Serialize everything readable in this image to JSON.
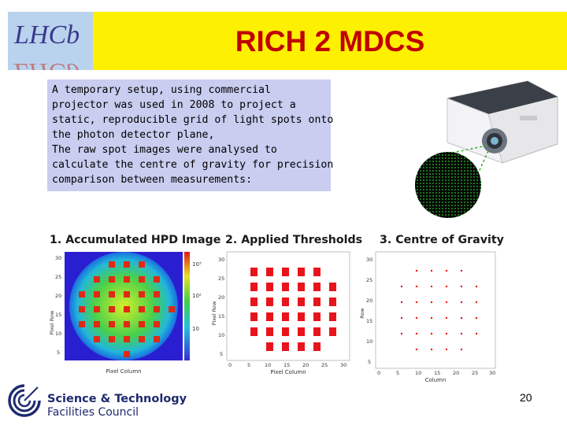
{
  "header": {
    "logo_text": "LHCb",
    "title": "RICH 2 MDCS"
  },
  "intro_text": [
    "A temporary setup, using commercial",
    "projector was used in 2008 to project a",
    "static, reproducible grid of light spots onto",
    "the photon detector plane,",
    "The raw spot images were analysed to",
    "calculate the centre of gravity for precision",
    "comparison between measurements:"
  ],
  "figures": [
    {
      "label": "1. Accumulated HPD Image",
      "xlabel": "Pixel Column",
      "ylabel": "Pixel Row",
      "colorbar_ticks": [
        "10³",
        "10²",
        "10"
      ]
    },
    {
      "label": "2. Applied Thresholds",
      "xlabel": "Pixel Column",
      "ylabel": "Pixel Row"
    },
    {
      "label": "3. Centre of Gravity",
      "xlabel": "Column",
      "ylabel": "Row"
    }
  ],
  "footer": {
    "org_line1": "Science & Technology",
    "org_line2": "Facilities Council",
    "page_number": "20"
  },
  "colors": {
    "title_bar": "#fdf000",
    "title_text": "#c00000",
    "textbox_bg": "#c9cdf0",
    "logo_bg": "#b9d3ee",
    "spot_red": "#e8141c"
  },
  "icons": [
    "lhcb-logo-icon",
    "projector-icon",
    "stfc-logo-icon"
  ]
}
